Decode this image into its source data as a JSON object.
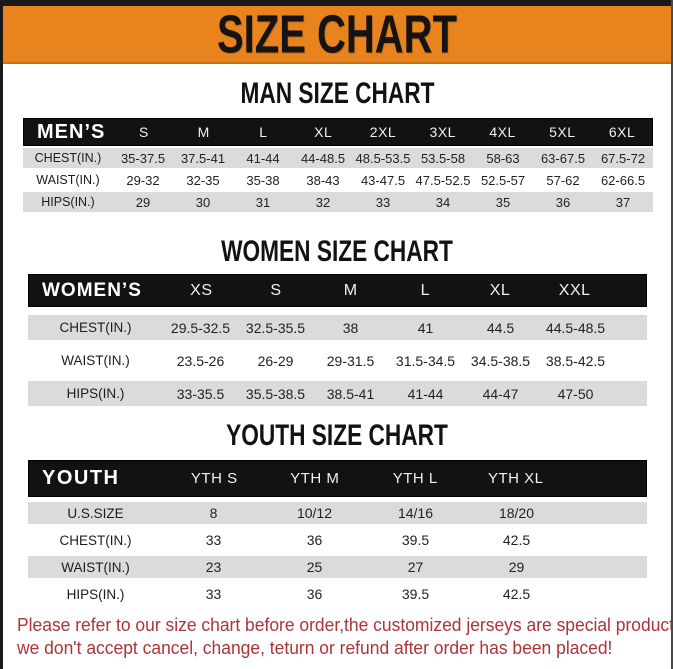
{
  "banner": {
    "title": "SIZE CHART",
    "bg_color": "#E8831E",
    "text_color": "#141414"
  },
  "tables": [
    {
      "id": "men",
      "heading": "MAN SIZE CHART",
      "header": [
        "MEN’S",
        "S",
        "M",
        "L",
        "XL",
        "2XL",
        "3XL",
        "4XL",
        "5XL",
        "6XL"
      ],
      "rows": [
        {
          "label": "CHEST(IN.)",
          "values": [
            "35-37.5",
            "37.5-41",
            "41-44",
            "44-48.5",
            "48.5-53.5",
            "53.5-58",
            "58-63",
            "63-67.5",
            "67.5-72"
          ]
        },
        {
          "label": "WAIST(IN.)",
          "values": [
            "29-32",
            "32-35",
            "35-38",
            "38-43",
            "43-47.5",
            "47.5-52.5",
            "52.5-57",
            "57-62",
            "62-66.5"
          ]
        },
        {
          "label": "HIPS(IN.)",
          "values": [
            "29",
            "30",
            "31",
            "32",
            "33",
            "34",
            "35",
            "36",
            "37"
          ]
        }
      ]
    },
    {
      "id": "women",
      "heading": "WOMEN SIZE CHART",
      "header": [
        "WOMEN’S",
        "XS",
        "S",
        "M",
        "L",
        "XL",
        "XXL"
      ],
      "rows": [
        {
          "label": "CHEST(IN.)",
          "values": [
            "29.5-32.5",
            "32.5-35.5",
            "38",
            "41",
            "44.5",
            "44.5-48.5"
          ]
        },
        {
          "label": "WAIST(IN.)",
          "values": [
            "23.5-26",
            "26-29",
            "29-31.5",
            "31.5-34.5",
            "34.5-38.5",
            "38.5-42.5"
          ]
        },
        {
          "label": "HIPS(IN.)",
          "values": [
            "33-35.5",
            "35.5-38.5",
            "38.5-41",
            "41-44",
            "44-47",
            "47-50"
          ]
        }
      ]
    },
    {
      "id": "youth",
      "heading": "YOUTH SIZE CHART",
      "header": [
        "YOUTH",
        "YTH S",
        "YTH M",
        "YTH L",
        "YTH XL"
      ],
      "rows": [
        {
          "label": "U.S.SIZE",
          "values": [
            "8",
            "10/12",
            "14/16",
            "18/20"
          ]
        },
        {
          "label": "CHEST(IN.)",
          "values": [
            "33",
            "36",
            "39.5",
            "42.5"
          ]
        },
        {
          "label": "WAIST(IN.)",
          "values": [
            "23",
            "25",
            "27",
            "29"
          ]
        },
        {
          "label": "HIPS(IN.)",
          "values": [
            "33",
            "36",
            "39.5",
            "42.5"
          ]
        }
      ]
    }
  ],
  "disclaimer": {
    "color": "#AB3438",
    "lines": [
      "Please refer to our size chart before order,the customized jerseys are special products,",
      "we don't accept cancel, change, teturn or refund after order has been placed!"
    ]
  }
}
